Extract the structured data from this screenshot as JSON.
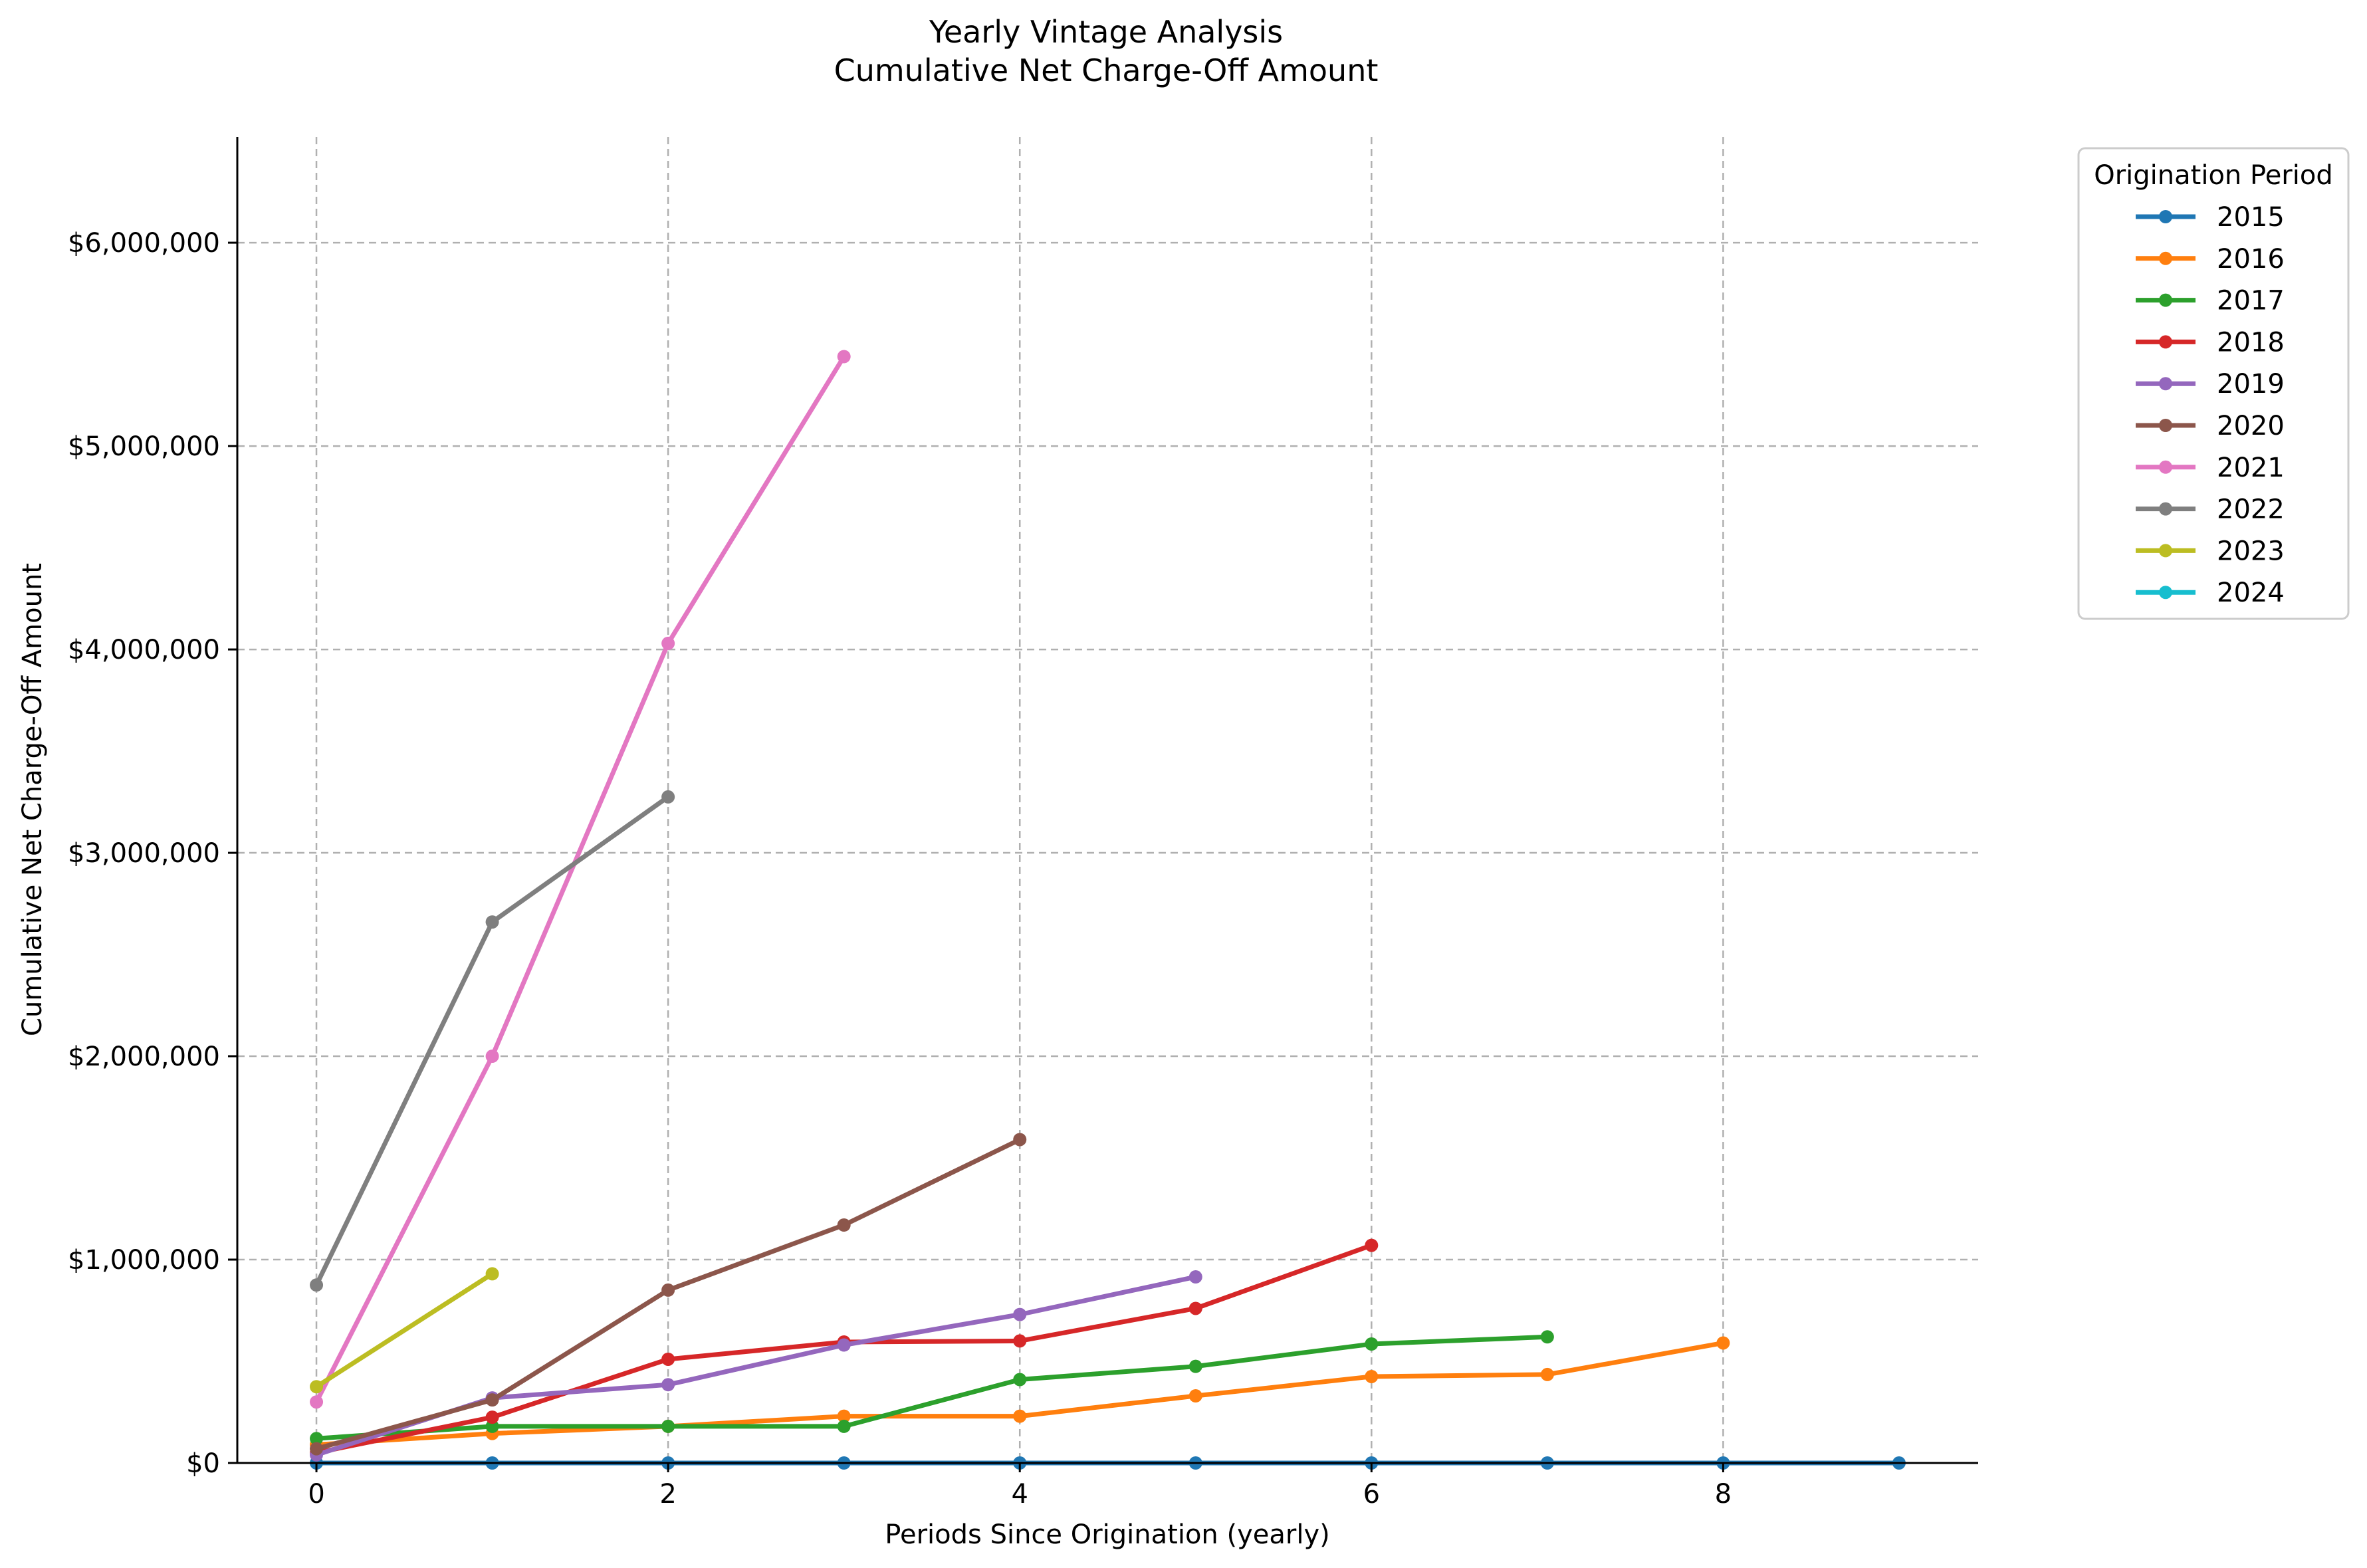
{
  "chart_data": {
    "type": "line",
    "title": [
      "Yearly Vintage Analysis",
      "Cumulative Net Charge-Off Amount"
    ],
    "xlabel": "Periods Since Origination (yearly)",
    "ylabel": "Cumulative Net Charge-Off Amount",
    "xlim": [
      -0.45,
      9.45
    ],
    "ylim": [
      0,
      6520000
    ],
    "x_ticks": [
      0,
      2,
      4,
      6,
      8
    ],
    "x_tick_labels": [
      "0",
      "2",
      "4",
      "6",
      "8"
    ],
    "y_ticks": [
      0,
      1000000,
      2000000,
      3000000,
      4000000,
      5000000,
      6000000
    ],
    "y_tick_labels": [
      "$0",
      "$1,000,000",
      "$2,000,000",
      "$3,000,000",
      "$4,000,000",
      "$5,000,000",
      "$6,000,000"
    ],
    "grid": true,
    "legend": {
      "title": "Origination Period",
      "placement": "outside-top-right"
    },
    "series": [
      {
        "name": "2015",
        "color": "#1f77b4",
        "x": [
          0,
          1,
          2,
          3,
          4,
          5,
          6,
          7,
          8,
          9
        ],
        "values": [
          0,
          0,
          0,
          0,
          0,
          0,
          0,
          0,
          0,
          0
        ]
      },
      {
        "name": "2016",
        "color": "#ff7f0e",
        "x": [
          0,
          1,
          2,
          3,
          4,
          5,
          6,
          7,
          8
        ],
        "values": [
          90000,
          145000,
          180000,
          230000,
          230000,
          330000,
          425000,
          435000,
          590000
        ]
      },
      {
        "name": "2017",
        "color": "#2ca02c",
        "x": [
          0,
          1,
          2,
          3,
          4,
          5,
          6,
          7
        ],
        "values": [
          120000,
          180000,
          180000,
          180000,
          410000,
          475000,
          585000,
          620000
        ]
      },
      {
        "name": "2018",
        "color": "#d62728",
        "x": [
          0,
          1,
          2,
          3,
          4,
          5,
          6
        ],
        "values": [
          50000,
          225000,
          510000,
          595000,
          600000,
          760000,
          1070000
        ]
      },
      {
        "name": "2019",
        "color": "#9467bd",
        "x": [
          0,
          1,
          2,
          3,
          4,
          5
        ],
        "values": [
          40000,
          320000,
          385000,
          580000,
          730000,
          915000
        ]
      },
      {
        "name": "2020",
        "color": "#8c564b",
        "x": [
          0,
          1,
          2,
          3,
          4
        ],
        "values": [
          70000,
          310000,
          850000,
          1170000,
          1590000
        ]
      },
      {
        "name": "2021",
        "color": "#e377c2",
        "x": [
          0,
          1,
          2,
          3
        ],
        "values": [
          300000,
          2000000,
          4030000,
          5440000
        ]
      },
      {
        "name": "2022",
        "color": "#7f7f7f",
        "x": [
          0,
          1,
          2
        ],
        "values": [
          875000,
          2660000,
          3275000
        ]
      },
      {
        "name": "2023",
        "color": "#bcbd22",
        "x": [
          0,
          1
        ],
        "values": [
          375000,
          930000
        ]
      },
      {
        "name": "2024",
        "color": "#17becf",
        "x": [],
        "values": []
      }
    ]
  }
}
